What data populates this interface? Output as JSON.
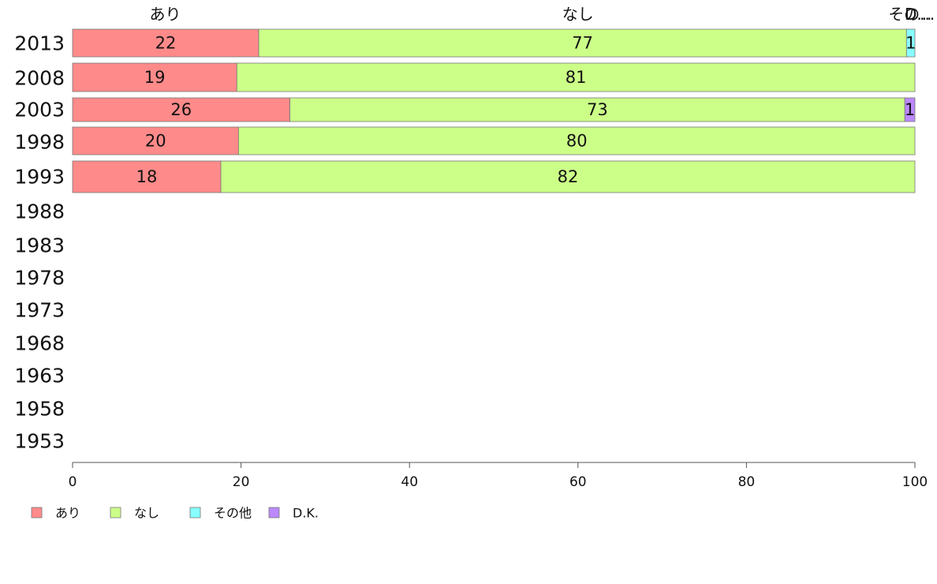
{
  "chart_data": {
    "type": "bar",
    "orientation": "horizontal",
    "stacked": true,
    "categories": [
      "2013",
      "2008",
      "2003",
      "1998",
      "1993",
      "1988",
      "1983",
      "1978",
      "1973",
      "1968",
      "1963",
      "1958",
      "1953"
    ],
    "series": [
      {
        "name": "あり",
        "values": [
          22,
          19,
          26,
          20,
          18,
          null,
          null,
          null,
          null,
          null,
          null,
          null,
          null
        ]
      },
      {
        "name": "なし",
        "values": [
          77,
          81,
          73,
          80,
          82,
          null,
          null,
          null,
          null,
          null,
          null,
          null,
          null
        ]
      },
      {
        "name": "その他",
        "values": [
          1,
          0,
          0,
          0,
          0,
          null,
          null,
          null,
          null,
          null,
          null,
          null,
          null
        ]
      },
      {
        "name": "D.K.",
        "values": [
          0,
          0,
          1,
          0,
          0,
          null,
          null,
          null,
          null,
          null,
          null,
          null,
          null
        ]
      }
    ],
    "segment_widths": [
      [
        22.1,
        76.9,
        1.0,
        0
      ],
      [
        19.5,
        80.5,
        0,
        0
      ],
      [
        25.8,
        73.0,
        0,
        1.2
      ],
      [
        19.7,
        80.3,
        0,
        0
      ],
      [
        17.6,
        82.4,
        0,
        0
      ]
    ],
    "colors": [
      "#ff8a8a",
      "#ccff88",
      "#88ffff",
      "#bb88ff"
    ],
    "top_labels": [
      {
        "text": "あり",
        "x": 11
      },
      {
        "text": "なし",
        "x": 60
      },
      {
        "text": "その...",
        "x": 99.6
      },
      {
        "text": "D...",
        "x": 100.4
      }
    ],
    "xticks": [
      0,
      20,
      40,
      60,
      80,
      100
    ],
    "xlim": [
      0,
      100
    ],
    "legend": [
      "あり",
      "なし",
      "その他",
      "D.K."
    ],
    "legend_position": "bottom-left",
    "grid": false
  }
}
